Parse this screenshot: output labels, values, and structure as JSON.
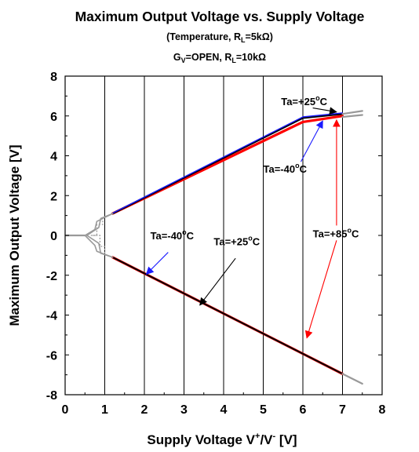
{
  "chart_data": {
    "type": "line",
    "title": "Maximum Output Voltage vs. Supply Voltage",
    "subtitle": {
      "prefix": "(Temperature, R",
      "sub": "L",
      "suffix": "=5kΩ)"
    },
    "subtitle2": {
      "g": "G",
      "g_sub": "V",
      "mid": "=OPEN, R",
      "r_sub": "L",
      "end": "=10kΩ"
    },
    "xlabel": {
      "main": "Supply Voltage V",
      "sup1": "+",
      "mid": "/V",
      "sup2": "-",
      "end": " [V]"
    },
    "ylabel": "Maximum Output Voltage [V]",
    "xlim": [
      0,
      8
    ],
    "ylim": [
      -8,
      8
    ],
    "x_ticks": [
      "0",
      "1",
      "2",
      "3",
      "4",
      "5",
      "6",
      "7",
      "8"
    ],
    "y_ticks": [
      "8",
      "6",
      "4",
      "2",
      "0",
      "-2",
      "-4",
      "-6",
      "-8"
    ],
    "grid": "vertical",
    "colors": {
      "ta_minus40": "#1a1aff",
      "ta_plus25": "#000000",
      "ta_plus85": "#ff0000",
      "out_of_range": "#999999"
    },
    "series": [
      {
        "name": "Ta=+85°C high",
        "color": "#ff0000",
        "width": 3.2,
        "x": [
          1.2,
          6.0,
          7.0
        ],
        "y": [
          1.1,
          5.7,
          6.0
        ]
      },
      {
        "name": "Ta=+25°C high",
        "color": "#000000",
        "width": 2.4,
        "x": [
          1.2,
          6.0,
          7.0
        ],
        "y": [
          1.1,
          5.9,
          6.1
        ]
      },
      {
        "name": "Ta=-40°C high",
        "color": "#1a1aff",
        "width": 1.4,
        "x": [
          1.2,
          6.0,
          7.0
        ],
        "y": [
          1.12,
          5.95,
          6.15
        ]
      },
      {
        "name": "Ta=+85°C low",
        "color": "#ff0000",
        "width": 3.2,
        "x": [
          1.2,
          7.0
        ],
        "y": [
          -1.1,
          -6.95
        ]
      },
      {
        "name": "Ta=+25°C low",
        "color": "#000000",
        "width": 2.0,
        "x": [
          1.2,
          7.0
        ],
        "y": [
          -1.1,
          -6.95
        ]
      },
      {
        "name": "gray high ext",
        "color": "#999999",
        "width": 2.2,
        "x": [
          7.0,
          7.5
        ],
        "y": [
          6.1,
          6.25
        ]
      },
      {
        "name": "gray high ext 2",
        "color": "#999999",
        "width": 2.2,
        "x": [
          7.0,
          7.5
        ],
        "y": [
          5.95,
          6.05
        ]
      },
      {
        "name": "gray low ext",
        "color": "#999999",
        "width": 2.2,
        "x": [
          7.0,
          7.5
        ],
        "y": [
          -6.95,
          -7.45
        ]
      },
      {
        "name": "gray zero",
        "color": "#999999",
        "width": 2.2,
        "x": [
          0.0,
          0.5
        ],
        "y": [
          0.0,
          0.0
        ]
      },
      {
        "name": "gray rise a",
        "color": "#999999",
        "width": 1.6,
        "x": [
          0.5,
          0.75,
          0.8,
          1.2
        ],
        "y": [
          0.0,
          0.3,
          0.7,
          1.1
        ]
      },
      {
        "name": "gray rise b",
        "color": "#999999",
        "width": 1.6,
        "x": [
          0.55,
          0.85,
          0.9,
          1.2
        ],
        "y": [
          0.0,
          0.4,
          0.85,
          1.1
        ]
      },
      {
        "name": "gray fall a",
        "color": "#999999",
        "width": 1.6,
        "x": [
          0.5,
          0.75,
          0.8,
          1.2
        ],
        "y": [
          0.0,
          -0.5,
          -0.8,
          -1.1
        ]
      },
      {
        "name": "gray fall b",
        "color": "#999999",
        "width": 1.6,
        "x": [
          0.55,
          0.85,
          0.9,
          1.2
        ],
        "y": [
          0.0,
          -0.4,
          -0.9,
          -1.1
        ]
      }
    ],
    "dashed_steps": [
      {
        "color": "#999999",
        "x": [
          0.65,
          0.8,
          0.8,
          0.95,
          0.95
        ],
        "y": [
          0.0,
          0.0,
          0.55,
          0.55,
          0.9
        ]
      },
      {
        "color": "#999999",
        "x": [
          0.7,
          0.88,
          0.88,
          1.0,
          1.0
        ],
        "y": [
          0.0,
          0.0,
          -0.55,
          -0.55,
          -0.95
        ]
      }
    ],
    "annotations": [
      {
        "label": "Ta=+25",
        "unit": "C",
        "color": "#000000",
        "text_pos": [
          5.45,
          6.55
        ],
        "arrow_from": [
          6.25,
          6.4
        ],
        "arrow_to": [
          6.85,
          6.2
        ]
      },
      {
        "label": "Ta=-40",
        "unit": "C",
        "color": "#1a1aff",
        "text_pos": [
          5.0,
          3.15
        ],
        "arrow_from": [
          5.95,
          3.7
        ],
        "arrow_to": [
          6.5,
          5.75
        ]
      },
      {
        "label": "Ta=+85",
        "unit": "C",
        "color": "#ff0000",
        "text_pos": [
          6.25,
          -0.1
        ],
        "arrow_from": [
          6.85,
          0.5
        ],
        "arrow_to": [
          6.85,
          5.8
        ]
      },
      {
        "label": "Ta=+85",
        "unit": "C",
        "color": "#ff0000",
        "text_pos": null,
        "arrow_from": [
          6.85,
          -0.25
        ],
        "arrow_to": [
          6.1,
          -5.15
        ]
      },
      {
        "label": "Ta=-40",
        "unit": "C",
        "color": "#1a1aff",
        "text_pos": [
          2.15,
          -0.2
        ],
        "arrow_from": [
          2.6,
          -0.85
        ],
        "arrow_to": [
          2.05,
          -1.95
        ]
      },
      {
        "label": "Ta=+25",
        "unit": "C",
        "color": "#000000",
        "text_pos": [
          3.75,
          -0.5
        ],
        "arrow_from": [
          4.3,
          -1.15
        ],
        "arrow_to": [
          3.4,
          -3.5
        ]
      }
    ]
  }
}
